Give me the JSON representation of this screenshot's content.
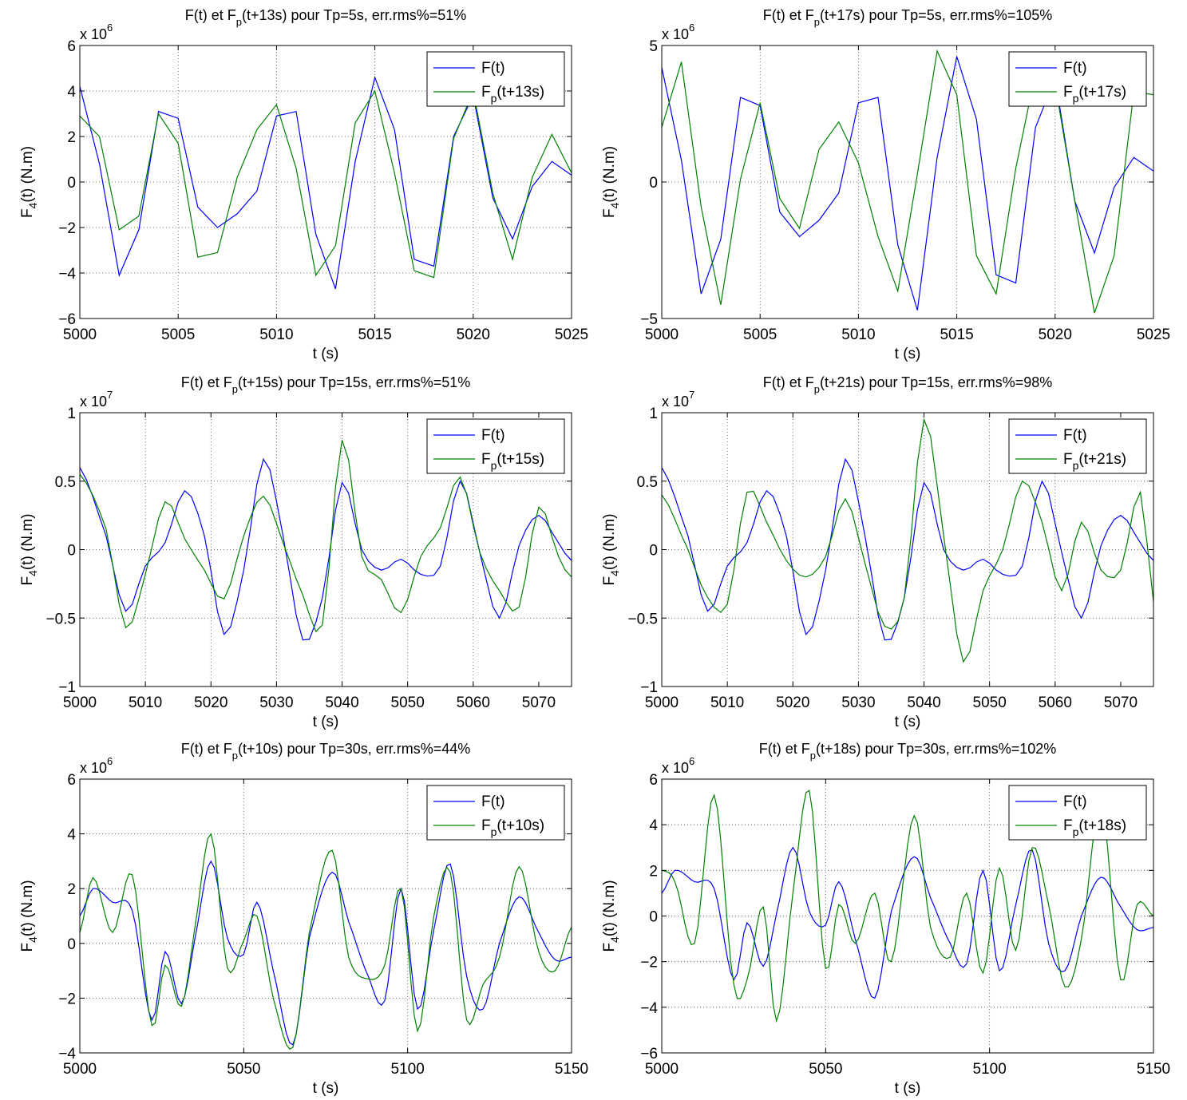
{
  "chart_data": [
    {
      "type": "line",
      "title": "F(t) et F_p(t+13s) pour Tp=5s, err.rms%=51%",
      "title_parts": {
        "a": "F(t) et F",
        "sub": "p",
        "b": "(t+13s) pour Tp=5s, err.rms%=51%"
      },
      "xlabel": "t (s)",
      "ylabel": "F_4(t) (N.m)",
      "exponent_base": "x 10",
      "exponent": "6",
      "xlim": [
        5000,
        5025
      ],
      "ylim": [
        -6,
        6
      ],
      "xticks": [
        5000,
        5005,
        5010,
        5015,
        5020,
        5025
      ],
      "xtick_labels": [
        "5000",
        "5005",
        "5010",
        "5015",
        "5020",
        "5025"
      ],
      "yticks": [
        -6,
        -4,
        -2,
        0,
        2,
        4,
        6
      ],
      "ytick_labels": [
        "−6",
        "−4",
        "−2",
        "0",
        "2",
        "4",
        "6"
      ],
      "legend_position": "top-right",
      "x": [
        5000,
        5001,
        5002,
        5003,
        5004,
        5005,
        5006,
        5007,
        5008,
        5009,
        5010,
        5011,
        5012,
        5013,
        5014,
        5015,
        5016,
        5017,
        5018,
        5019,
        5020,
        5021,
        5022,
        5023,
        5024,
        5025
      ],
      "series": [
        {
          "name": "F(t)",
          "legend_main": "F(t)",
          "legend_sub": "",
          "legend_rest": "",
          "color": "#0000ff",
          "values": [
            4.2,
            0.8,
            -4.1,
            -2.1,
            3.1,
            2.8,
            -1.1,
            -2.0,
            -1.4,
            -0.4,
            2.9,
            3.1,
            -2.3,
            -4.7,
            0.9,
            4.6,
            2.3,
            -3.4,
            -3.7,
            2.0,
            3.8,
            -0.7,
            -2.5,
            -0.2,
            0.9,
            0.3
          ]
        },
        {
          "name": "F_p(t+13s)",
          "legend_main": "F",
          "legend_sub": "p",
          "legend_rest": "(t+13s)",
          "color": "#008000",
          "values": [
            2.9,
            2.0,
            -2.1,
            -1.5,
            3.0,
            1.7,
            -3.3,
            -3.1,
            0.2,
            2.3,
            3.4,
            0.6,
            -4.1,
            -2.8,
            2.6,
            4.0,
            0.4,
            -3.9,
            -4.2,
            1.9,
            4.0,
            -0.5,
            -3.4,
            0.2,
            2.1,
            0.4
          ]
        }
      ]
    },
    {
      "type": "line",
      "title": "F(t) et F_p(t+17s) pour Tp=5s, err.rms%=105%",
      "title_parts": {
        "a": "F(t) et F",
        "sub": "p",
        "b": "(t+17s) pour Tp=5s, err.rms%=105%"
      },
      "xlabel": "t (s)",
      "ylabel": "F_4(t) (N.m)",
      "exponent_base": "x 10",
      "exponent": "6",
      "xlim": [
        5000,
        5025
      ],
      "ylim": [
        -5,
        5
      ],
      "xticks": [
        5000,
        5005,
        5010,
        5015,
        5020,
        5025
      ],
      "xtick_labels": [
        "5000",
        "5005",
        "5010",
        "5015",
        "5020",
        "5025"
      ],
      "yticks": [
        -5,
        0,
        5
      ],
      "ytick_labels": [
        "−5",
        "0",
        "5"
      ],
      "legend_position": "top-right",
      "x": [
        5000,
        5001,
        5002,
        5003,
        5004,
        5005,
        5006,
        5007,
        5008,
        5009,
        5010,
        5011,
        5012,
        5013,
        5014,
        5015,
        5016,
        5017,
        5018,
        5019,
        5020,
        5021,
        5022,
        5023,
        5024,
        5025
      ],
      "series": [
        {
          "name": "F(t)",
          "legend_main": "F(t)",
          "legend_sub": "",
          "legend_rest": "",
          "color": "#0000ff",
          "values": [
            4.2,
            0.8,
            -4.1,
            -2.1,
            3.1,
            2.8,
            -1.1,
            -2.0,
            -1.4,
            -0.4,
            2.9,
            3.1,
            -2.3,
            -4.7,
            0.9,
            4.6,
            2.3,
            -3.4,
            -3.7,
            2.0,
            3.8,
            -0.7,
            -2.6,
            -0.2,
            0.9,
            0.4
          ]
        },
        {
          "name": "F_p(t+17s)",
          "legend_main": "F",
          "legend_sub": "p",
          "legend_rest": "(t+17s)",
          "color": "#008000",
          "values": [
            2.0,
            4.4,
            -0.9,
            -4.5,
            0.1,
            2.9,
            -0.6,
            -1.7,
            1.2,
            2.2,
            0.7,
            -2.0,
            -4.0,
            0.3,
            4.8,
            3.2,
            -2.7,
            -4.1,
            0.5,
            4.0,
            3.6,
            -0.7,
            -4.8,
            -2.7,
            3.3,
            3.2
          ]
        }
      ]
    },
    {
      "type": "line",
      "title": "F(t) et F_p(t+15s) pour Tp=15s, err.rms%=51%",
      "title_parts": {
        "a": "F(t) et F",
        "sub": "p",
        "b": "(t+15s) pour Tp=15s, err.rms%=51%"
      },
      "xlabel": "t (s)",
      "ylabel": "F_4(t) (N.m)",
      "exponent_base": "x 10",
      "exponent": "7",
      "xlim": [
        5000,
        5075
      ],
      "ylim": [
        -1,
        1
      ],
      "xticks": [
        5000,
        5010,
        5020,
        5030,
        5040,
        5050,
        5060,
        5070
      ],
      "xtick_labels": [
        "5000",
        "5010",
        "5020",
        "5030",
        "5040",
        "5050",
        "5060",
        "5070"
      ],
      "yticks": [
        -1,
        -0.5,
        0,
        0.5,
        1
      ],
      "ytick_labels": [
        "−1",
        "−0.5",
        "0",
        "0.5",
        "1"
      ],
      "legend_position": "top-right",
      "x_keys": [
        5000,
        5004,
        5007,
        5010,
        5013,
        5016,
        5019,
        5022,
        5025,
        5028,
        5031,
        5034,
        5037,
        5040,
        5043,
        5046,
        5049,
        5052,
        5055,
        5058,
        5061,
        5064,
        5067,
        5070,
        5073,
        5075
      ],
      "series": [
        {
          "name": "F(t)",
          "legend_main": "F(t)",
          "legend_sub": "",
          "legend_rest": "",
          "color": "#0000ff",
          "keys": [
            0.6,
            0.1,
            -0.45,
            -0.12,
            0.05,
            0.43,
            0.1,
            -0.62,
            -0.15,
            0.66,
            0.1,
            -0.66,
            -0.35,
            0.49,
            0.0,
            -0.15,
            -0.07,
            -0.18,
            -0.12,
            0.5,
            -0.02,
            -0.5,
            0.03,
            0.25,
            0.05,
            -0.08
          ]
        },
        {
          "name": "F_p(t+15s)",
          "legend_main": "F",
          "legend_sub": "p",
          "legend_rest": "(t+15s)",
          "color": "#008000",
          "keys": [
            0.55,
            0.15,
            -0.57,
            -0.18,
            0.35,
            0.08,
            -0.15,
            -0.36,
            0.1,
            0.39,
            0.05,
            -0.33,
            -0.55,
            0.8,
            -0.05,
            -0.22,
            -0.46,
            -0.05,
            0.16,
            0.53,
            -0.02,
            -0.3,
            -0.42,
            0.31,
            -0.05,
            -0.2
          ]
        }
      ]
    },
    {
      "type": "line",
      "title": "F(t) et F_p(t+21s) pour Tp=15s, err.rms%=98%",
      "title_parts": {
        "a": "F(t) et F",
        "sub": "p",
        "b": "(t+21s) pour Tp=15s, err.rms%=98%"
      },
      "xlabel": "t (s)",
      "ylabel": "F_4(t) (N.m)",
      "exponent_base": "x 10",
      "exponent": "7",
      "xlim": [
        5000,
        5075
      ],
      "ylim": [
        -1,
        1
      ],
      "xticks": [
        5000,
        5010,
        5020,
        5030,
        5040,
        5050,
        5060,
        5070
      ],
      "xtick_labels": [
        "5000",
        "5010",
        "5020",
        "5030",
        "5040",
        "5050",
        "5060",
        "5070"
      ],
      "yticks": [
        -1,
        -0.5,
        0,
        0.5,
        1
      ],
      "ytick_labels": [
        "−1",
        "−0.5",
        "0",
        "0.5",
        "1"
      ],
      "legend_position": "top-right",
      "x_keys": [
        5000,
        5004,
        5007,
        5010,
        5013,
        5016,
        5019,
        5022,
        5025,
        5028,
        5031,
        5034,
        5037,
        5040,
        5043,
        5046,
        5049,
        5052,
        5055,
        5058,
        5061,
        5064,
        5067,
        5070,
        5073,
        5075
      ],
      "series": [
        {
          "name": "F(t)",
          "legend_main": "F(t)",
          "legend_sub": "",
          "legend_rest": "",
          "color": "#0000ff",
          "keys": [
            0.6,
            0.1,
            -0.45,
            -0.12,
            0.05,
            0.43,
            0.1,
            -0.62,
            -0.15,
            0.66,
            0.1,
            -0.66,
            -0.35,
            0.49,
            0.0,
            -0.15,
            -0.07,
            -0.18,
            -0.12,
            0.5,
            -0.02,
            -0.5,
            0.03,
            0.25,
            0.05,
            -0.08
          ]
        },
        {
          "name": "F_p(t+21s)",
          "legend_main": "F",
          "legend_sub": "p",
          "legend_rest": "(t+21s)",
          "color": "#008000",
          "keys": [
            0.4,
            0.0,
            -0.35,
            -0.4,
            0.42,
            0.2,
            -0.08,
            -0.2,
            -0.05,
            0.37,
            -0.1,
            -0.56,
            -0.35,
            0.95,
            0.1,
            -0.82,
            -0.3,
            0.0,
            0.5,
            0.2,
            -0.3,
            0.2,
            -0.15,
            -0.15,
            0.42,
            -0.38
          ]
        }
      ]
    },
    {
      "type": "line",
      "title": "F(t) et F_p(t+10s) pour Tp=30s, err.rms%=44%",
      "title_parts": {
        "a": "F(t) et F",
        "sub": "p",
        "b": "(t+10s) pour Tp=30s, err.rms%=44%"
      },
      "xlabel": "t (s)",
      "ylabel": "F_4(t) (N.m)",
      "exponent_base": "x 10",
      "exponent": "6",
      "xlim": [
        5000,
        5150
      ],
      "ylim": [
        -4,
        6
      ],
      "xticks": [
        5000,
        5050,
        5100,
        5150
      ],
      "xtick_labels": [
        "5000",
        "5050",
        "5100",
        "5150"
      ],
      "yticks": [
        -4,
        -2,
        0,
        2,
        4,
        6
      ],
      "ytick_labels": [
        "−4",
        "−2",
        "0",
        "2",
        "4",
        "6"
      ],
      "legend_position": "top-right",
      "x_keys": [
        5000,
        5004,
        5010,
        5016,
        5022,
        5026,
        5031,
        5035,
        5040,
        5045,
        5050,
        5054,
        5059,
        5065,
        5070,
        5077,
        5082,
        5088,
        5093,
        5098,
        5103,
        5108,
        5113,
        5118,
        5123,
        5128,
        5134,
        5140,
        5145,
        5150
      ],
      "series": [
        {
          "name": "F(t)",
          "legend_main": "F(t)",
          "legend_sub": "",
          "legend_rest": "",
          "color": "#0000ff",
          "keys": [
            1.0,
            2.0,
            1.5,
            1.2,
            -2.8,
            -0.3,
            -2.2,
            0.1,
            3.0,
            0.2,
            -0.4,
            1.5,
            -1.0,
            -3.7,
            0.2,
            2.6,
            0.8,
            -1.2,
            -2.1,
            2.0,
            -2.4,
            0.5,
            2.9,
            -1.2,
            -2.4,
            0.0,
            1.7,
            0.4,
            -0.6,
            -0.5
          ]
        },
        {
          "name": "F_p(t+10s)",
          "legend_main": "F",
          "legend_sub": "p",
          "legend_rest": "(t+10s)",
          "color": "#008000",
          "keys": [
            0.4,
            2.4,
            0.4,
            2.5,
            -3.0,
            -0.8,
            -2.3,
            0.5,
            4.0,
            -0.9,
            0.1,
            1.0,
            -2.0,
            -3.8,
            0.4,
            3.4,
            -0.5,
            -1.3,
            -0.8,
            2.0,
            -3.2,
            1.0,
            2.6,
            -2.8,
            -1.5,
            -0.5,
            2.8,
            -0.3,
            -1.0,
            0.6
          ]
        }
      ]
    },
    {
      "type": "line",
      "title": "F(t) et F_p(t+18s) pour Tp=30s, err.rms%=102%",
      "title_parts": {
        "a": "F(t) et F",
        "sub": "p",
        "b": "(t+18s) pour Tp=30s, err.rms%=102%"
      },
      "xlabel": "t (s)",
      "ylabel": "F_4(t) (N.m)",
      "exponent_base": "x 10",
      "exponent": "6",
      "xlim": [
        5000,
        5150
      ],
      "ylim": [
        -6,
        6
      ],
      "xticks": [
        5000,
        5050,
        5100,
        5150
      ],
      "xtick_labels": [
        "5000",
        "5050",
        "5100",
        "5150"
      ],
      "yticks": [
        -6,
        -4,
        -2,
        0,
        2,
        4,
        6
      ],
      "ytick_labels": [
        "−6",
        "−4",
        "−2",
        "0",
        "2",
        "4",
        "6"
      ],
      "legend_position": "top-right",
      "x_keys": [
        5000,
        5004,
        5010,
        5016,
        5022,
        5026,
        5031,
        5035,
        5040,
        5045,
        5050,
        5054,
        5059,
        5065,
        5070,
        5077,
        5082,
        5088,
        5093,
        5098,
        5103,
        5108,
        5113,
        5118,
        5123,
        5128,
        5134,
        5140,
        5145,
        5150
      ],
      "series": [
        {
          "name": "F(t)",
          "legend_main": "F(t)",
          "legend_sub": "",
          "legend_rest": "",
          "color": "#0000ff",
          "keys": [
            1.0,
            2.0,
            1.5,
            1.2,
            -2.8,
            -0.3,
            -2.2,
            0.1,
            3.0,
            0.2,
            -0.4,
            1.5,
            -1.0,
            -3.6,
            0.2,
            2.6,
            0.8,
            -1.2,
            -2.1,
            2.0,
            -2.4,
            0.5,
            2.9,
            -1.2,
            -2.4,
            0.0,
            1.7,
            0.4,
            -0.6,
            -0.5
          ]
        },
        {
          "name": "F_p(t+18s)",
          "legend_main": "F",
          "legend_sub": "p",
          "legend_rest": "(t+18s)",
          "color": "#008000",
          "keys": [
            2.0,
            1.5,
            -1.2,
            5.3,
            -3.0,
            -2.8,
            0.4,
            -4.6,
            1.0,
            5.5,
            -2.3,
            0.5,
            -1.2,
            1.0,
            -2.0,
            4.4,
            -0.5,
            -1.8,
            1.0,
            -2.5,
            2.1,
            -1.5,
            3.0,
            0.5,
            -3.1,
            -1.0,
            5.0,
            -2.8,
            0.5,
            0.0
          ]
        }
      ]
    }
  ]
}
